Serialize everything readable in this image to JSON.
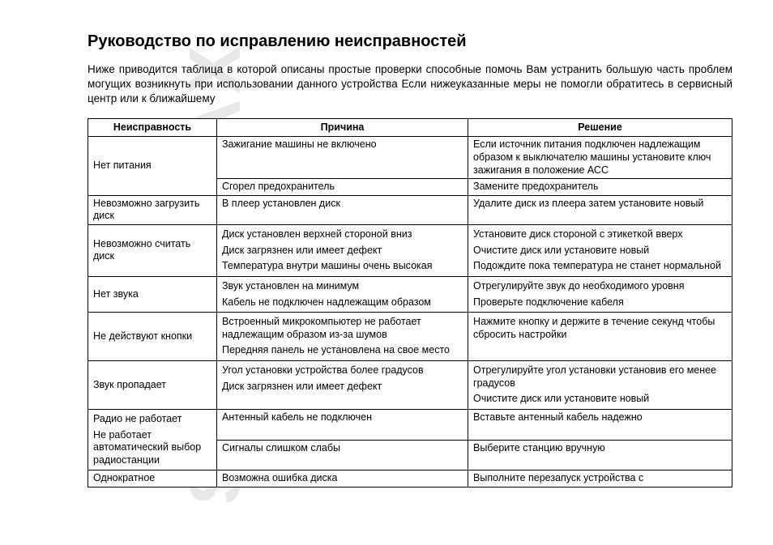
{
  "watermark": "SOUNDMAX",
  "title": "Руководство по исправлению неисправностей",
  "intro": "Ниже приводится таблица  в которой описаны простые проверки  способные помочь Вам устранить большую часть проблем  могущих возникнуть при использовании данного устройства  Если нижеуказанные меры не помогли  обратитесь в сервисный центр или к ближайшему",
  "table": {
    "headers": [
      "Неисправность",
      "Причина",
      "Решение"
    ],
    "rows": [
      {
        "problem": "Нет питания",
        "cause": "Зажигание машины не включено",
        "solution": "Если источник питания подключен надлежащим образом к выключателю машины  установите ключ зажигания в положение   АСС"
      },
      {
        "problem": "",
        "cause": "Сгорел предохранитель",
        "solution": "Замените предохранитель"
      },
      {
        "problem": "Невозможно загрузить диск",
        "cause": "В плеер установлен диск",
        "solution": "Удалите диск из плеера  затем установите новый"
      },
      {
        "problem": "Невозможно считать диск",
        "cause1": "Диск установлен верхней стороной вниз",
        "solution1": "Установите диск стороной с этикеткой вверх",
        "cause2": "Диск загрязнен или имеет дефект",
        "solution2": "Очистите диск или установите новый",
        "cause3": "Температура внутри машины очень высокая",
        "solution3": "Подождите  пока температура не станет нормальной"
      },
      {
        "problem": "Нет звука",
        "cause1": "Звук установлен на минимум",
        "solution1": "Отрегулируйте звук до необходимого уровня",
        "cause2": "Кабель не подключен надлежащим образом",
        "solution2": "Проверьте подключение кабеля"
      },
      {
        "problem": "Не действуют кнопки",
        "cause1": "Встроенный микрокомпьютер не работает надлежащим образом из-за шумов",
        "solution1": "Нажмите кнопку            и держите в течение       секунд  чтобы сбросить настройки",
        "cause2": "Передняя панель не установлена на свое место",
        "solution2": ""
      },
      {
        "problem": "Звук пропадает",
        "cause1": "Угол установки устройства более       градусов",
        "solution1": "Отрегулируйте угол установки  установив его менее       градусов",
        "cause2": "Диск загрязнен или имеет дефект",
        "solution2": "Очистите диск или установите новый"
      },
      {
        "problem": "Радио не работает",
        "cause": "Антенный кабель не подключен",
        "solution": "Вставьте антенный кабель надежно"
      },
      {
        "problem": "Не работает автоматический выбор радиостанции",
        "cause": "Сигналы слишком слабы",
        "solution": "Выберите станцию вручную"
      },
      {
        "problem": "Однократное",
        "cause": "Возможна ошибка диска",
        "solution": "Выполните перезапуск устройства с"
      }
    ]
  }
}
